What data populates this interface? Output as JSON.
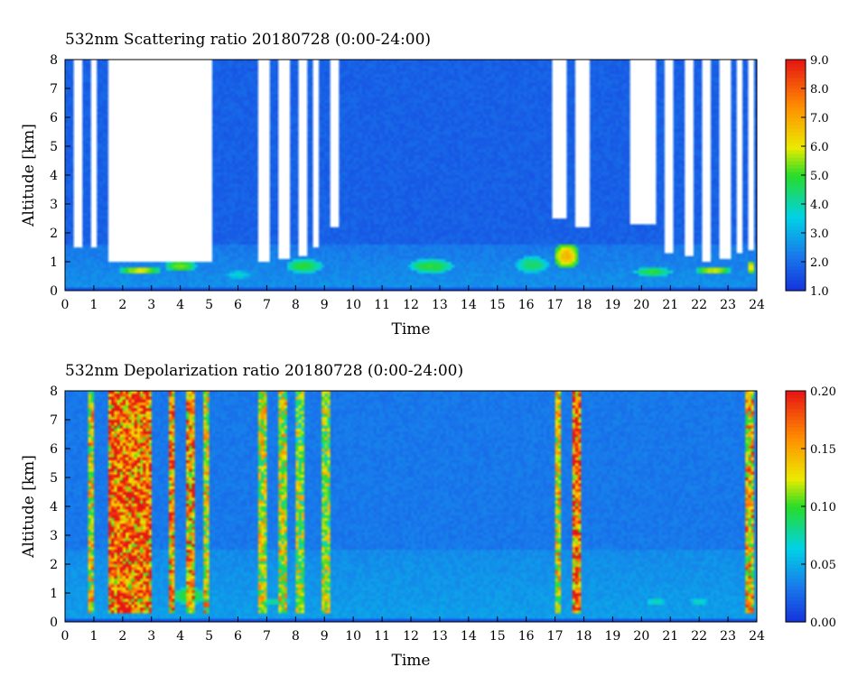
{
  "chart_data": [
    {
      "type": "heatmap",
      "title": "532nm Scattering ratio   20180728 (0:00-24:00)",
      "xlabel": "Time",
      "ylabel": "Altitude [km]",
      "xlim": [
        0,
        24
      ],
      "ylim": [
        0,
        8
      ],
      "x_ticks": [
        "0",
        "1",
        "2",
        "3",
        "4",
        "5",
        "6",
        "7",
        "8",
        "9",
        "10",
        "11",
        "12",
        "13",
        "14",
        "15",
        "16",
        "17",
        "18",
        "19",
        "20",
        "21",
        "22",
        "23",
        "24"
      ],
      "y_ticks": [
        "0",
        "1",
        "2",
        "3",
        "4",
        "5",
        "6",
        "7",
        "8"
      ],
      "colorbar": {
        "range": [
          1.0,
          9.0
        ],
        "ticks": [
          "1.0",
          "2.0",
          "3.0",
          "4.0",
          "5.0",
          "6.0",
          "7.0",
          "8.0",
          "9.0"
        ]
      },
      "background_value": 1.8,
      "boundary_layer": {
        "top_km": 1.6,
        "value": 2.6
      },
      "no_data_gaps": [
        {
          "from": 0.35,
          "to": 0.55,
          "below_km": 1.5
        },
        {
          "from": 0.9,
          "to": 1.1,
          "below_km": 1.5
        },
        {
          "from": 1.5,
          "to": 5.05,
          "below_km": 1.0
        },
        {
          "from": 6.75,
          "to": 7.1,
          "below_km": 1.0
        },
        {
          "from": 7.4,
          "to": 7.75,
          "below_km": 1.1
        },
        {
          "from": 8.05,
          "to": 8.45,
          "below_km": 1.2
        },
        {
          "from": 8.6,
          "to": 8.85,
          "below_km": 1.5
        },
        {
          "from": 9.2,
          "to": 9.5,
          "below_km": 2.2
        },
        {
          "from": 16.85,
          "to": 17.35,
          "below_km": 2.5
        },
        {
          "from": 17.75,
          "to": 18.2,
          "below_km": 2.2
        },
        {
          "from": 19.6,
          "to": 20.5,
          "below_km": 2.3
        },
        {
          "from": 20.85,
          "to": 21.1,
          "below_km": 1.3
        },
        {
          "from": 21.5,
          "to": 21.8,
          "below_km": 1.2
        },
        {
          "from": 22.15,
          "to": 22.4,
          "below_km": 1.0
        },
        {
          "from": 22.75,
          "to": 23.05,
          "below_km": 1.1
        },
        {
          "from": 23.35,
          "to": 23.5,
          "below_km": 1.3
        },
        {
          "from": 23.7,
          "to": 23.85,
          "below_km": 1.4
        }
      ],
      "features": [
        {
          "t": 2.6,
          "alt_km": 0.7,
          "dt": 1.4,
          "dz": 0.15,
          "value": 6.0
        },
        {
          "t": 4.0,
          "alt_km": 0.85,
          "dt": 1.1,
          "dz": 0.2,
          "value": 5.5
        },
        {
          "t": 6.0,
          "alt_km": 0.55,
          "dt": 1.0,
          "dz": 0.15,
          "value": 3.8
        },
        {
          "t": 8.3,
          "alt_km": 0.85,
          "dt": 1.3,
          "dz": 0.25,
          "value": 5.0
        },
        {
          "t": 12.7,
          "alt_km": 0.85,
          "dt": 1.6,
          "dz": 0.25,
          "value": 5.0
        },
        {
          "t": 16.2,
          "alt_km": 0.9,
          "dt": 1.2,
          "dz": 0.3,
          "value": 4.6
        },
        {
          "t": 17.4,
          "alt_km": 1.2,
          "dt": 0.9,
          "dz": 0.45,
          "value": 6.8
        },
        {
          "t": 20.4,
          "alt_km": 0.65,
          "dt": 1.4,
          "dz": 0.15,
          "value": 5.0
        },
        {
          "t": 22.5,
          "alt_km": 0.7,
          "dt": 1.2,
          "dz": 0.15,
          "value": 6.0
        },
        {
          "t": 23.8,
          "alt_km": 0.8,
          "dt": 0.25,
          "dz": 0.25,
          "value": 6.5
        }
      ]
    },
    {
      "type": "heatmap",
      "title": "532nm Depolarization ratio   20180728 (0:00-24:00)",
      "xlabel": "Time",
      "ylabel": "Altitude [km]",
      "xlim": [
        0,
        24
      ],
      "ylim": [
        0,
        8
      ],
      "x_ticks": [
        "0",
        "1",
        "2",
        "3",
        "4",
        "5",
        "6",
        "7",
        "8",
        "9",
        "10",
        "11",
        "12",
        "13",
        "14",
        "15",
        "16",
        "17",
        "18",
        "19",
        "20",
        "21",
        "22",
        "23",
        "24"
      ],
      "y_ticks": [
        "0",
        "1",
        "2",
        "3",
        "4",
        "5",
        "6",
        "7",
        "8"
      ],
      "colorbar": {
        "range": [
          0.0,
          0.2
        ],
        "ticks": [
          "0.00",
          "0.05",
          "0.10",
          "0.15",
          "0.20"
        ]
      },
      "background_value": 0.03,
      "boundary_layer": {
        "top_km": 2.5,
        "value": 0.045
      },
      "high_depol_columns": [
        {
          "from": 0.8,
          "to": 0.95,
          "value": 0.13
        },
        {
          "from": 1.55,
          "to": 3.0,
          "value": 0.17
        },
        {
          "from": 3.6,
          "to": 3.8,
          "value": 0.15
        },
        {
          "from": 4.2,
          "to": 4.5,
          "value": 0.15
        },
        {
          "from": 4.8,
          "to": 5.0,
          "value": 0.13
        },
        {
          "from": 6.75,
          "to": 7.0,
          "value": 0.12
        },
        {
          "from": 7.4,
          "to": 7.7,
          "value": 0.12
        },
        {
          "from": 8.0,
          "to": 8.3,
          "value": 0.11
        },
        {
          "from": 8.9,
          "to": 9.2,
          "value": 0.11
        },
        {
          "from": 17.0,
          "to": 17.2,
          "value": 0.13
        },
        {
          "from": 17.55,
          "to": 17.9,
          "value": 0.17
        },
        {
          "from": 23.6,
          "to": 23.9,
          "value": 0.14
        }
      ],
      "features": [
        {
          "t": 2.2,
          "alt_km": 0.85,
          "dt": 1.4,
          "dz": 0.4,
          "value": 0.11
        },
        {
          "t": 4.3,
          "alt_km": 0.9,
          "dt": 1.2,
          "dz": 0.3,
          "value": 0.1
        },
        {
          "t": 0.9,
          "alt_km": 0.7,
          "dt": 0.3,
          "dz": 0.15,
          "value": 0.09
        },
        {
          "t": 7.3,
          "alt_km": 0.7,
          "dt": 1.0,
          "dz": 0.15,
          "value": 0.08
        },
        {
          "t": 20.5,
          "alt_km": 0.7,
          "dt": 0.8,
          "dz": 0.1,
          "value": 0.08
        },
        {
          "t": 22.0,
          "alt_km": 0.7,
          "dt": 0.6,
          "dz": 0.1,
          "value": 0.08
        },
        {
          "t": 23.75,
          "alt_km": 0.9,
          "dt": 0.25,
          "dz": 0.2,
          "value": 0.1
        }
      ]
    }
  ]
}
